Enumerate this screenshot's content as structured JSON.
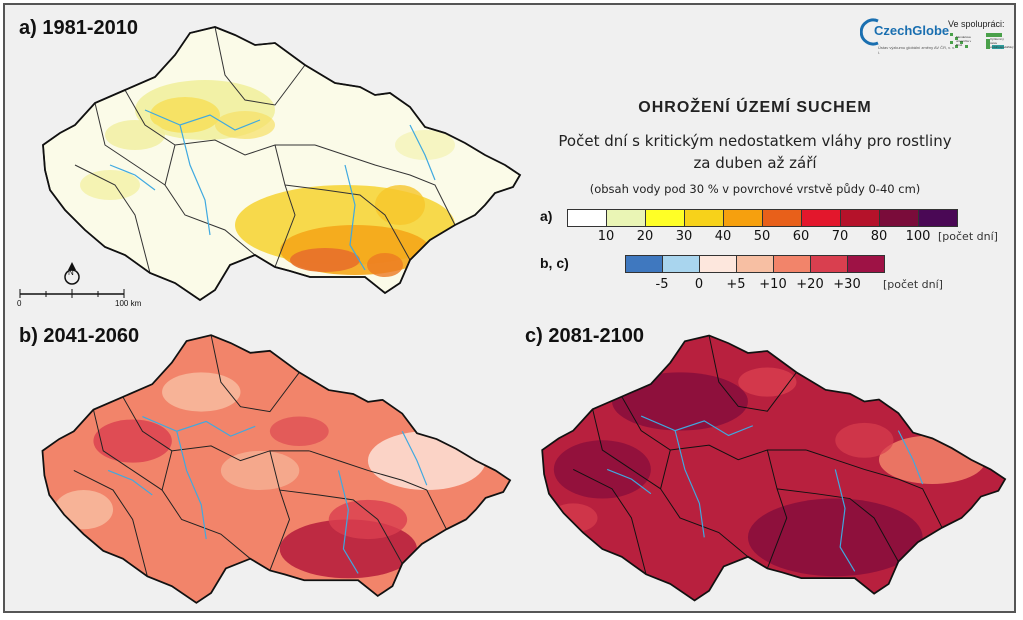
{
  "panels": [
    {
      "label": "a) 1981-2010"
    },
    {
      "label": "b) 2041-2060"
    },
    {
      "label": "c) 2081-2100"
    }
  ],
  "heading": {
    "title": "OHROŽENÍ ÚZEMÍ SUCHEM",
    "line1": "Počet dní s kritickým nedostatkem vláhy pro rostliny",
    "line2": "za duben až září",
    "note": "(obsah vody pod 30 % v povrchové vrstvě půdy 0-40 cm)"
  },
  "legend_a": {
    "key": "a)",
    "colors": [
      "#ffffff",
      "#eaf5b5",
      "#ffff26",
      "#f7d21a",
      "#f6a00e",
      "#e8601a",
      "#e3172c",
      "#b5122a",
      "#7a0c3a",
      "#4a0855"
    ],
    "ticks": [
      "10",
      "20",
      "30",
      "40",
      "50",
      "60",
      "70",
      "80",
      "100"
    ],
    "unit": "[počet dní]"
  },
  "legend_bc": {
    "key": "b, c)",
    "colors": [
      "#3f78bf",
      "#a9d5ee",
      "#fde7dd",
      "#f7bfa3",
      "#f2846a",
      "#d93f4f",
      "#9e1245"
    ],
    "ticks": [
      "-5",
      "0",
      "+5",
      "+10",
      "+20",
      "+30"
    ],
    "unit": "[počet dní]"
  },
  "logo": {
    "name": "CzechGlobe",
    "tagline": "Ústav výzkumu globální změny AV ČR, v. v. i.",
    "cooperation": "Ve spolupráci:",
    "partner1": "Mendelova univerzita v Brně",
    "partner2": "Výzkumný ústav vodohospodářský"
  },
  "scalebar": {
    "start": "0",
    "end": "100 km",
    "north": "N"
  },
  "map_colors": {
    "a_base": "#fbfbe8",
    "b_base": "#f08b6e",
    "c_base": "#b8203e",
    "river": "#3fa9e0",
    "border": "#222222"
  }
}
